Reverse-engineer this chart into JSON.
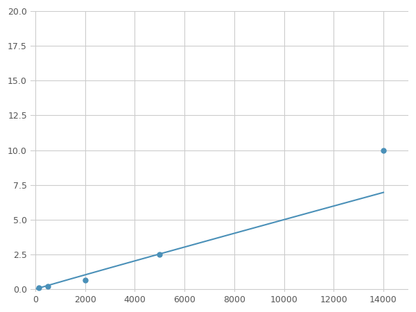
{
  "x_points": [
    125,
    500,
    2000,
    5000,
    14000
  ],
  "y_points": [
    0.1,
    0.2,
    0.65,
    2.5,
    10.0
  ],
  "line_color": "#4a90b8",
  "marker_color": "#4a90b8",
  "marker_size": 5,
  "xlim": [
    -200,
    15000
  ],
  "ylim": [
    -0.2,
    20.0
  ],
  "xticks": [
    0,
    2000,
    4000,
    6000,
    8000,
    10000,
    12000,
    14000
  ],
  "yticks": [
    0.0,
    2.5,
    5.0,
    7.5,
    10.0,
    12.5,
    15.0,
    17.5,
    20.0
  ],
  "grid_color": "#cccccc",
  "bg_color": "#ffffff",
  "linewidth": 1.5
}
